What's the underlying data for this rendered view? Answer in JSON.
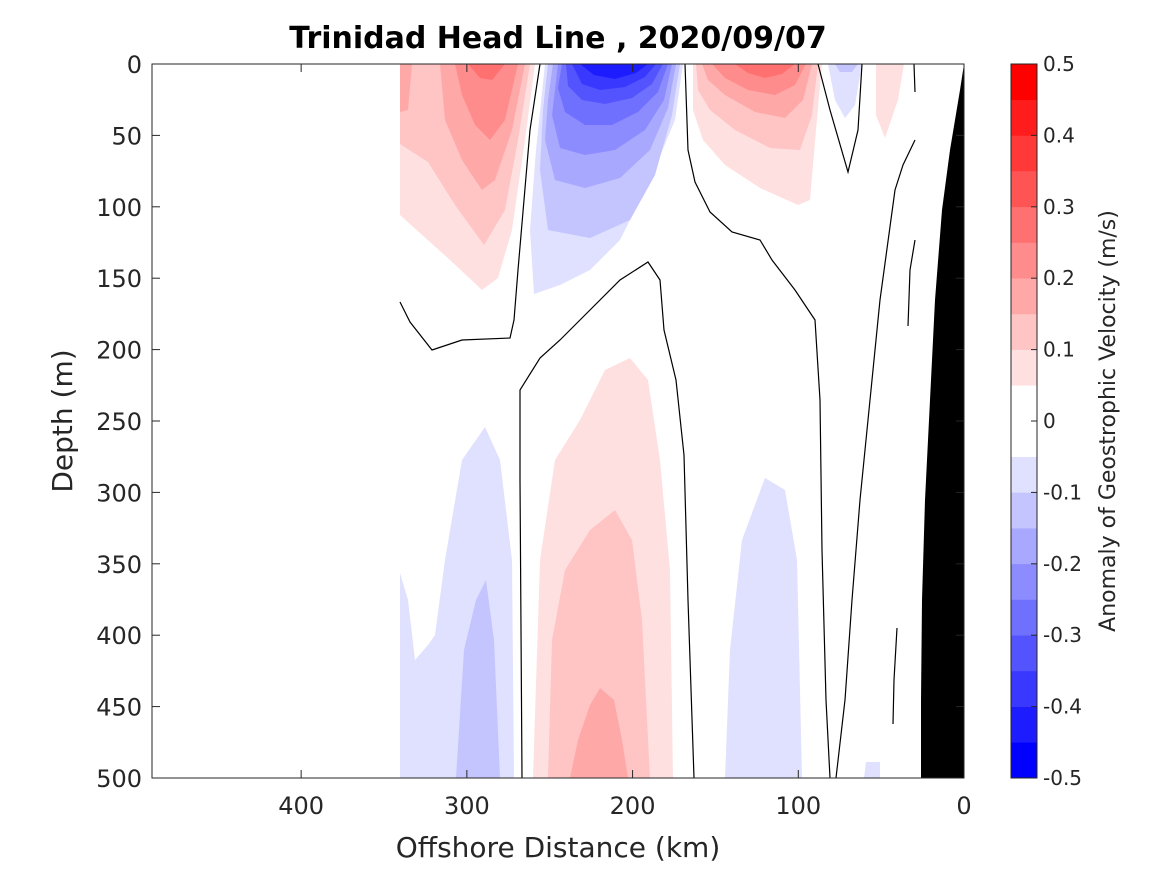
{
  "chart_data": {
    "type": "heatmap",
    "title": "Trinidad Head Line , 2020/09/07",
    "xlabel": "Offshore Distance (km)",
    "ylabel": "Depth (m)",
    "xlim": [
      490,
      0
    ],
    "ylim": [
      0,
      500
    ],
    "x_reversed": true,
    "y_reversed": true,
    "xticks": [
      400,
      300,
      200,
      100,
      0
    ],
    "yticks": [
      0,
      50,
      100,
      150,
      200,
      250,
      300,
      350,
      400,
      450,
      500
    ],
    "colorbar": {
      "label": "Anomaly of Geostrophic Velocity (m/s)",
      "range": [
        -0.5,
        0.5
      ],
      "level_step": 0.05,
      "ticks": [
        0.5,
        0.4,
        0.3,
        0.2,
        0.1,
        0,
        -0.1,
        -0.2,
        -0.3,
        -0.4,
        -0.5
      ],
      "colors": [
        "#0000ff",
        "#1c1cff",
        "#3838ff",
        "#5454ff",
        "#7070ff",
        "#8c8cff",
        "#a8a8ff",
        "#c4c4ff",
        "#e0e0ff",
        "#ffffff",
        "#ffffff",
        "#ffe0e0",
        "#ffc4c4",
        "#ffa8a8",
        "#ff8c8c",
        "#ff7070",
        "#ff5454",
        "#ff3838",
        "#ff1c1c",
        "#ff0000"
      ]
    },
    "bathymetry_color": "#000000",
    "features": [
      {
        "kind": "positive",
        "x_center": 290,
        "depth_center": 20,
        "peak": 0.25
      },
      {
        "kind": "negative",
        "x_center": 210,
        "depth_center": 15,
        "peak": -0.45
      },
      {
        "kind": "positive",
        "x_center": 120,
        "depth_center": 15,
        "peak": 0.27
      },
      {
        "kind": "negative",
        "x_center": 285,
        "depth_center": 450,
        "peak": -0.12
      },
      {
        "kind": "positive",
        "x_center": 215,
        "depth_center": 480,
        "peak": 0.19
      },
      {
        "kind": "negative",
        "x_center": 120,
        "depth_center": 420,
        "peak": -0.08
      }
    ]
  }
}
